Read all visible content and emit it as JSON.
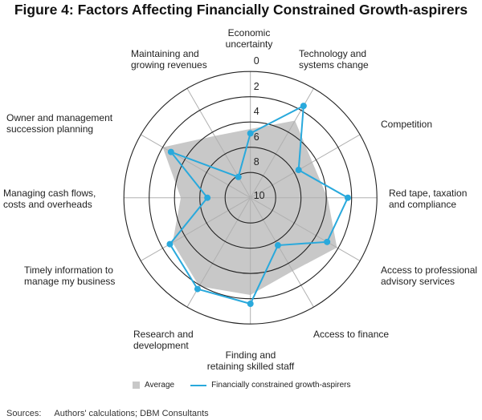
{
  "chart_data": {
    "type": "radar",
    "title": "Figure 4: Factors Affecting Financially Constrained Growth-aspirers",
    "categories": [
      "Economic\nuncertainty",
      "Technology and\nsystems change",
      "Competition",
      "Red tape, taxation\nand compliance",
      "Access to professional\nadvisory services",
      "Access to finance",
      "Finding and\nretaining skilled staff",
      "Research and\ndevelopment",
      "Timely information to\nmanage my business",
      "Managing cash flows,\ncosts and overheads",
      "Owner and management\nsuccession planning",
      "Maintaining and\ngrowing revenues"
    ],
    "radial_axis": {
      "range": [
        10,
        0
      ],
      "ticks": [
        "0",
        "2",
        "4",
        "6",
        "8",
        "10"
      ],
      "reversed": true
    },
    "series": [
      {
        "name": "Average",
        "style": "area",
        "color": "#c8c8c8",
        "values": [
          4.55,
          2.95,
          4.35,
          3.9,
          2.1,
          3.3,
          2.3,
          1.9,
          2.9,
          4.5,
          2.0,
          4.35
        ]
      },
      {
        "name": "Financially constrained growth-aspirers",
        "style": "line-markers",
        "color": "#29a9dc",
        "values": [
          4.9,
          1.6,
          5.6,
          2.3,
          3.0,
          5.65,
          1.6,
          1.65,
          2.65,
          6.6,
          2.75,
          8.1
        ]
      }
    ],
    "legend": "bottom"
  },
  "sources": {
    "label": "Sources:",
    "text": "Authors' calculations; DBM Consultants"
  }
}
